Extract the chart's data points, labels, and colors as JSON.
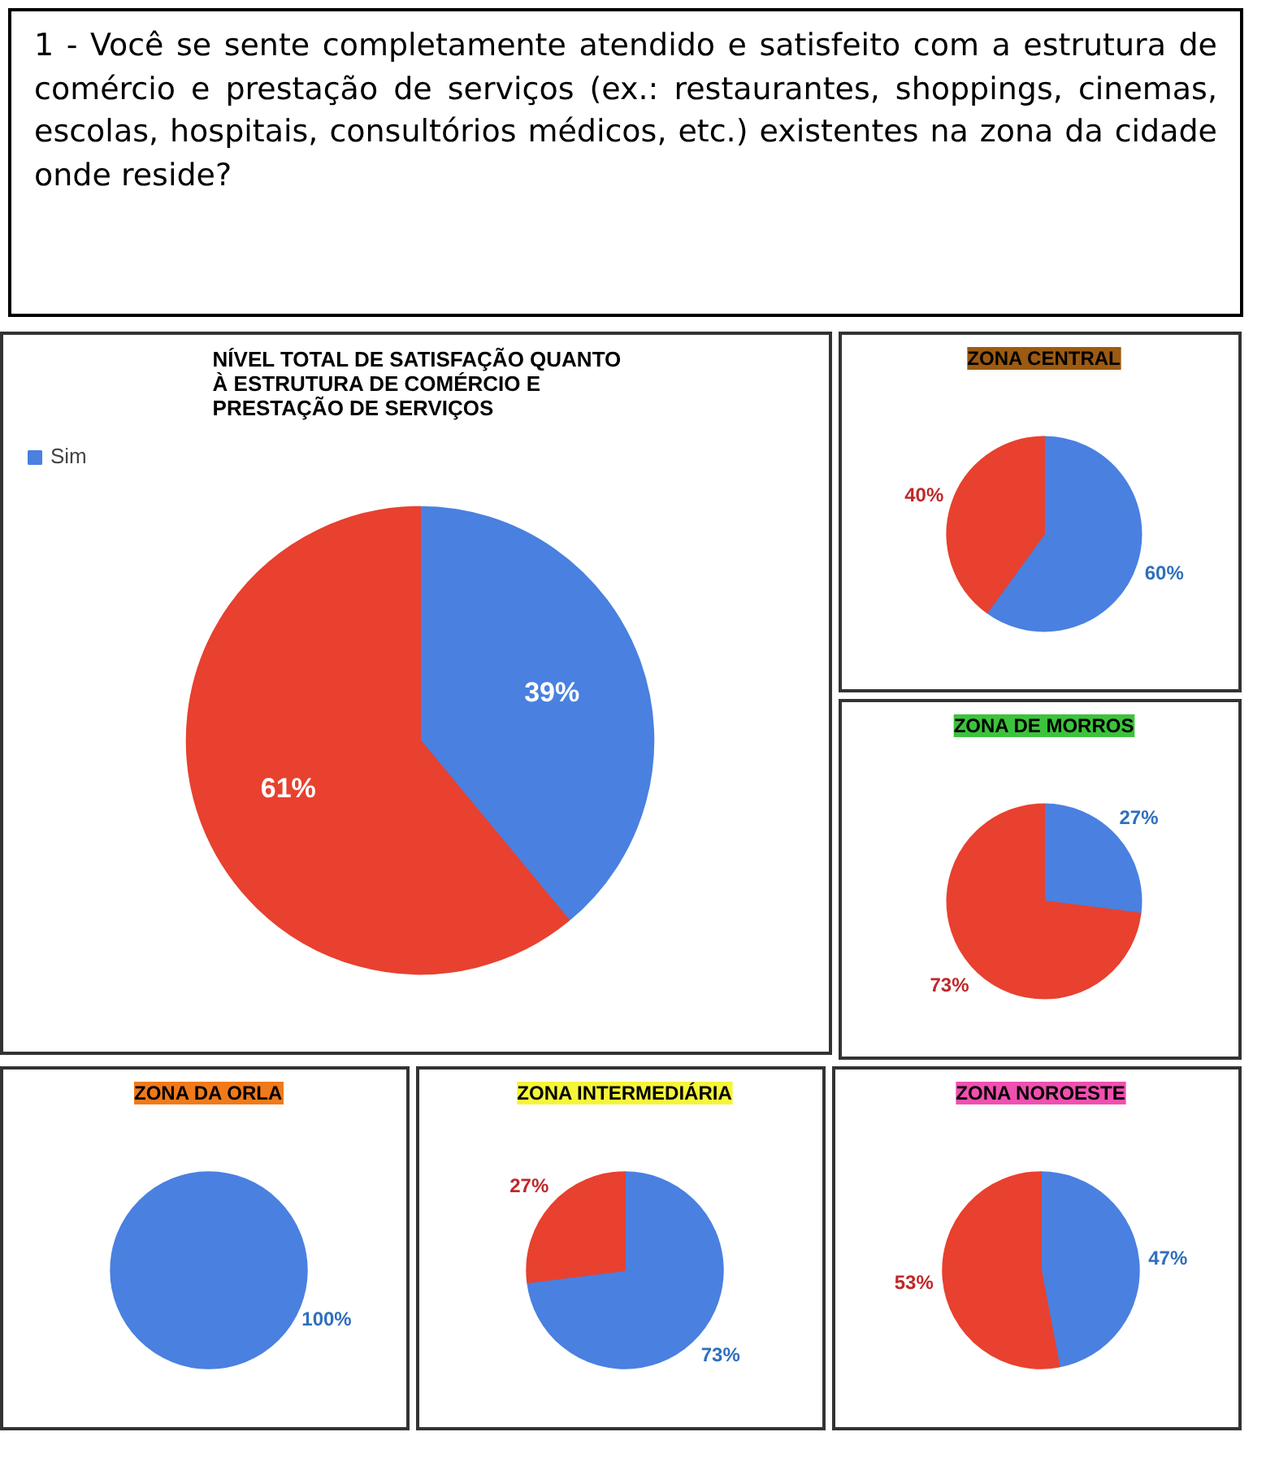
{
  "chart_data": [
    {
      "type": "other",
      "title": "1 - Você se sente completamente atendido e satisfeito com a estrutura de comércio e prestação de serviços (ex.: restaurantes, shoppings, cinemas, escolas, hospitais, consultórios médicos, etc.) existentes na zona da cidade onde reside?"
    },
    {
      "type": "pie",
      "title": "NÍVEL TOTAL  DE SATISFAÇÃO QUANTO À ESTRUTURA DE COMÉRCIO E PRESTAÇÃO DE SERVIÇOS",
      "categories": [
        "Sim",
        null
      ],
      "values": [
        39,
        61
      ],
      "colors": [
        "#4a80e0",
        "#e8412f"
      ],
      "value_labels": [
        "39%",
        "61%"
      ],
      "legend": "top left"
    },
    {
      "type": "pie",
      "title": "ZONA CENTRAL",
      "categories": [
        null,
        null
      ],
      "values": [
        60,
        40
      ],
      "colors": [
        "#4a80e0",
        "#e8412f"
      ],
      "value_labels": [
        "60%",
        "40%"
      ]
    },
    {
      "type": "pie",
      "title": "ZONA DE MORROS",
      "categories": [
        null,
        null
      ],
      "values": [
        27,
        73
      ],
      "colors": [
        "#4a80e0",
        "#e8412f"
      ],
      "value_labels": [
        "27%",
        "73%"
      ]
    },
    {
      "type": "pie",
      "title": "ZONA DA ORLA",
      "categories": [
        null
      ],
      "values": [
        100
      ],
      "colors": [
        "#4a80e0"
      ],
      "value_labels": [
        "100%"
      ]
    },
    {
      "type": "pie",
      "title": "ZONA INTERMEDIÁRIA",
      "categories": [
        null,
        null
      ],
      "values": [
        73,
        27
      ],
      "colors": [
        "#4a80e0",
        "#e8412f"
      ],
      "value_labels": [
        "73%",
        "27%"
      ]
    },
    {
      "type": "pie",
      "title": "ZONA NOROESTE",
      "categories": [
        null,
        null
      ],
      "values": [
        47,
        53
      ],
      "colors": [
        "#4a80e0",
        "#e8412f"
      ],
      "value_labels": [
        "47%",
        "53%"
      ]
    }
  ]
}
